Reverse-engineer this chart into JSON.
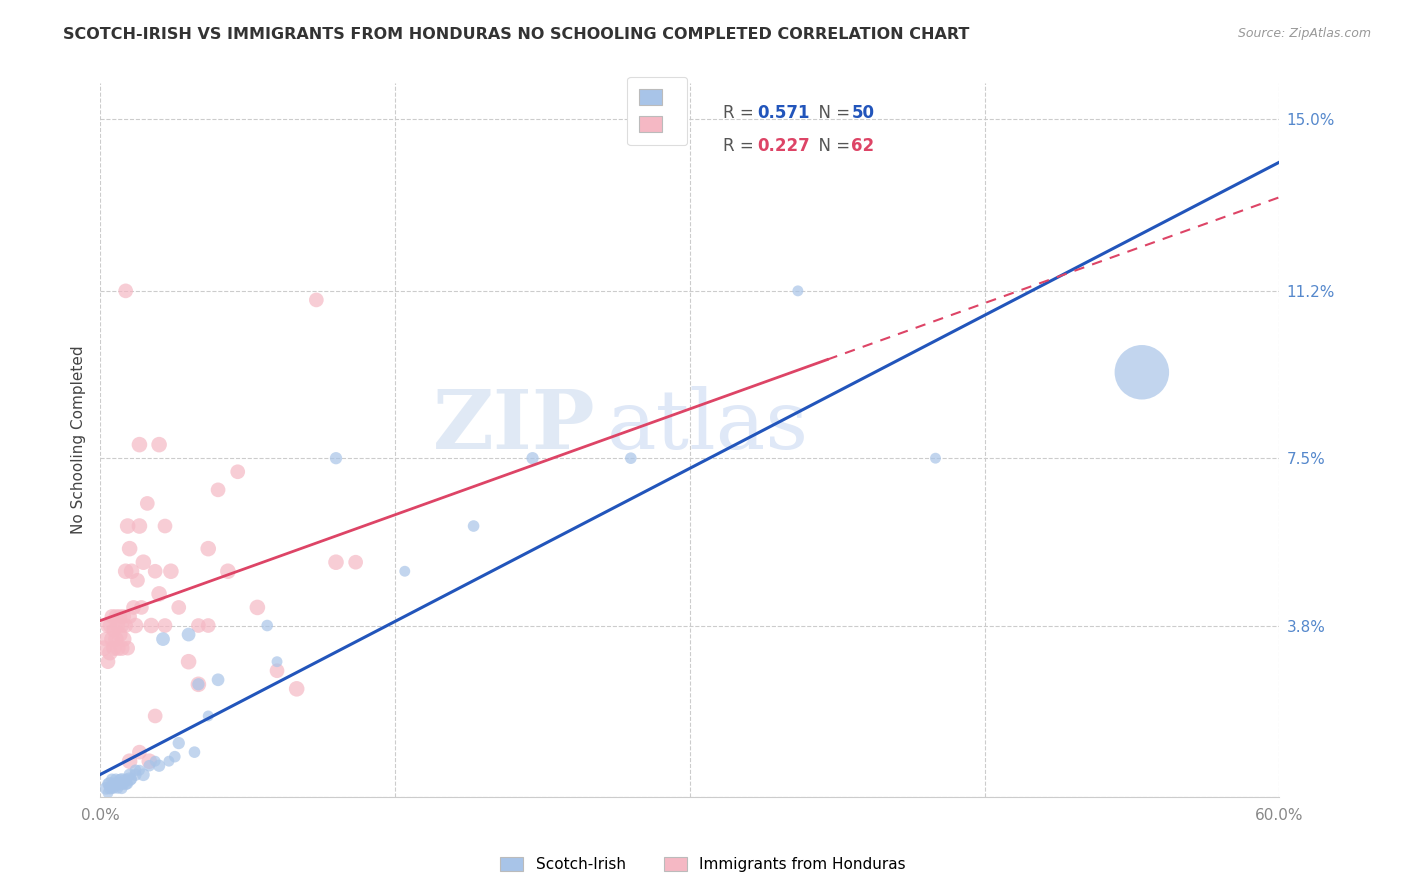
{
  "title": "SCOTCH-IRISH VS IMMIGRANTS FROM HONDURAS NO SCHOOLING COMPLETED CORRELATION CHART",
  "source": "Source: ZipAtlas.com",
  "ylabel": "No Schooling Completed",
  "yticks": [
    0.0,
    0.038,
    0.075,
    0.112,
    0.15
  ],
  "ytick_labels": [
    "",
    "3.8%",
    "7.5%",
    "11.2%",
    "15.0%"
  ],
  "xticks": [
    0.0,
    0.15,
    0.3,
    0.45,
    0.6
  ],
  "xtick_labels": [
    "0.0%",
    "",
    "",
    "",
    "60.0%"
  ],
  "blue_R": "0.571",
  "blue_N": "50",
  "pink_R": "0.227",
  "pink_N": "62",
  "blue_color": "#a8c4e8",
  "pink_color": "#f5b8c4",
  "blue_line_color": "#2255bb",
  "pink_line_color": "#dd4466",
  "blue_label": "Scotch-Irish",
  "pink_label": "Immigrants from Honduras",
  "watermark_zip": "ZIP",
  "watermark_atlas": "atlas",
  "xlim": [
    0.0,
    0.6
  ],
  "ylim": [
    0.0,
    0.158
  ],
  "blue_scatter_x": [
    0.003,
    0.004,
    0.004,
    0.005,
    0.005,
    0.006,
    0.006,
    0.007,
    0.007,
    0.008,
    0.008,
    0.009,
    0.009,
    0.01,
    0.01,
    0.011,
    0.011,
    0.012,
    0.013,
    0.013,
    0.014,
    0.015,
    0.015,
    0.016,
    0.018,
    0.018,
    0.02,
    0.022,
    0.025,
    0.028,
    0.03,
    0.032,
    0.035,
    0.038,
    0.04,
    0.045,
    0.048,
    0.05,
    0.055,
    0.06,
    0.085,
    0.09,
    0.12,
    0.155,
    0.19,
    0.22,
    0.27,
    0.355,
    0.425,
    0.53
  ],
  "blue_scatter_y": [
    0.002,
    0.003,
    0.001,
    0.002,
    0.003,
    0.002,
    0.004,
    0.003,
    0.002,
    0.003,
    0.004,
    0.002,
    0.003,
    0.003,
    0.004,
    0.002,
    0.004,
    0.003,
    0.003,
    0.004,
    0.003,
    0.005,
    0.004,
    0.004,
    0.006,
    0.005,
    0.006,
    0.005,
    0.007,
    0.008,
    0.007,
    0.035,
    0.008,
    0.009,
    0.012,
    0.036,
    0.01,
    0.025,
    0.018,
    0.026,
    0.038,
    0.03,
    0.075,
    0.05,
    0.06,
    0.075,
    0.075,
    0.112,
    0.075,
    0.094
  ],
  "blue_scatter_size": [
    30,
    25,
    22,
    28,
    35,
    22,
    25,
    28,
    22,
    30,
    25,
    22,
    28,
    35,
    22,
    25,
    28,
    22,
    30,
    25,
    22,
    28,
    35,
    22,
    25,
    28,
    22,
    30,
    25,
    22,
    28,
    35,
    22,
    25,
    28,
    35,
    25,
    28,
    22,
    30,
    25,
    22,
    28,
    22,
    25,
    28,
    25,
    22,
    22,
    550
  ],
  "pink_scatter_x": [
    0.002,
    0.003,
    0.004,
    0.004,
    0.005,
    0.005,
    0.006,
    0.006,
    0.007,
    0.007,
    0.008,
    0.008,
    0.009,
    0.009,
    0.01,
    0.01,
    0.011,
    0.011,
    0.012,
    0.012,
    0.013,
    0.013,
    0.014,
    0.014,
    0.015,
    0.015,
    0.016,
    0.017,
    0.018,
    0.019,
    0.02,
    0.021,
    0.022,
    0.024,
    0.026,
    0.028,
    0.03,
    0.033,
    0.036,
    0.04,
    0.045,
    0.05,
    0.055,
    0.06,
    0.065,
    0.07,
    0.08,
    0.09,
    0.1,
    0.11,
    0.12,
    0.13,
    0.015,
    0.02,
    0.025,
    0.028,
    0.03,
    0.033,
    0.05,
    0.055,
    0.02,
    0.013
  ],
  "pink_scatter_y": [
    0.033,
    0.035,
    0.038,
    0.03,
    0.032,
    0.038,
    0.035,
    0.04,
    0.033,
    0.037,
    0.035,
    0.04,
    0.033,
    0.038,
    0.036,
    0.04,
    0.033,
    0.038,
    0.035,
    0.04,
    0.05,
    0.038,
    0.06,
    0.033,
    0.055,
    0.04,
    0.05,
    0.042,
    0.038,
    0.048,
    0.06,
    0.042,
    0.052,
    0.065,
    0.038,
    0.05,
    0.045,
    0.06,
    0.05,
    0.042,
    0.03,
    0.038,
    0.055,
    0.068,
    0.05,
    0.072,
    0.042,
    0.028,
    0.024,
    0.11,
    0.052,
    0.052,
    0.008,
    0.01,
    0.008,
    0.018,
    0.078,
    0.038,
    0.025,
    0.038,
    0.078,
    0.112
  ],
  "pink_scatter_size": [
    45,
    40,
    45,
    40,
    45,
    40,
    45,
    40,
    45,
    40,
    45,
    40,
    45,
    40,
    45,
    40,
    45,
    40,
    45,
    40,
    45,
    40,
    45,
    40,
    45,
    40,
    45,
    40,
    45,
    40,
    45,
    40,
    45,
    40,
    45,
    40,
    45,
    40,
    45,
    40,
    45,
    40,
    45,
    40,
    45,
    40,
    45,
    40,
    45,
    40,
    45,
    40,
    45,
    40,
    45,
    40,
    45,
    40,
    45,
    40,
    45,
    40
  ]
}
